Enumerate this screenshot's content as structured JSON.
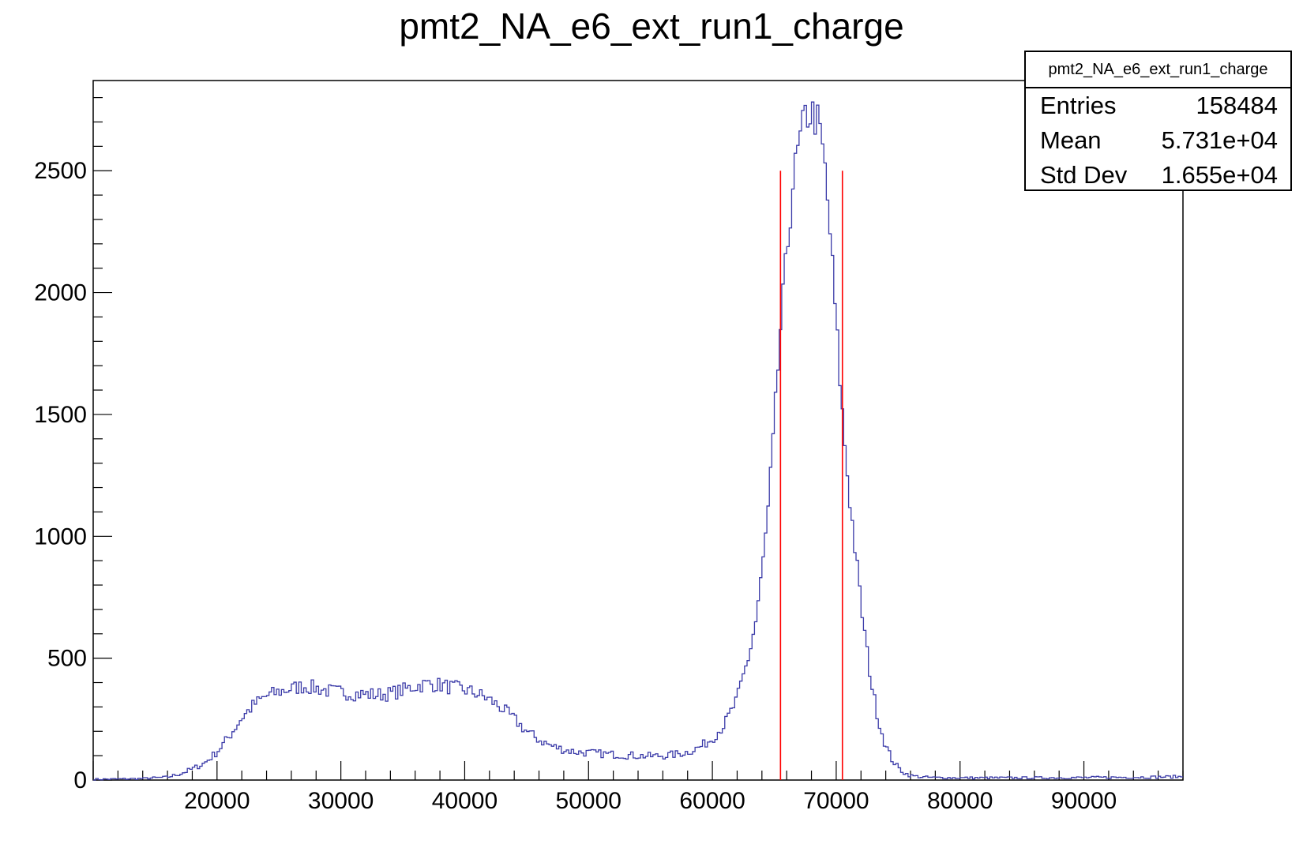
{
  "chart_data": {
    "type": "histogram",
    "title": "pmt2_NA_e6_ext_run1_charge",
    "xlabel": "",
    "ylabel": "",
    "xlim": [
      10000,
      98000
    ],
    "ylim": [
      0,
      2870
    ],
    "x_ticks": [
      20000,
      30000,
      40000,
      50000,
      60000,
      70000,
      80000,
      90000
    ],
    "x_tick_labels": [
      "20000",
      "30000",
      "40000",
      "50000",
      "60000",
      "70000",
      "80000",
      "90000"
    ],
    "y_ticks": [
      0,
      500,
      1000,
      1500,
      2000,
      2500
    ],
    "y_tick_labels": [
      "0",
      "500",
      "1000",
      "1500",
      "2000",
      "2500"
    ],
    "grid": false,
    "line_color": "#3a3aa8",
    "marker_color": "#ff0000",
    "markers": [
      {
        "x": 65500,
        "y_top": 2500
      },
      {
        "x": 70500,
        "y_top": 2500
      }
    ],
    "series": [
      {
        "x": [
          10000,
          12000,
          14000,
          16000,
          17000,
          18000,
          19000,
          20000,
          21000,
          22000,
          23000,
          24000,
          25000,
          26000,
          27000,
          28000,
          29000,
          30000,
          31000,
          32000,
          33000,
          34000,
          35000,
          36000,
          37000,
          38000,
          39000,
          40000,
          41000,
          42000,
          43000,
          44000,
          45000,
          46000,
          47000,
          48000,
          49000,
          50000,
          51000,
          52000,
          53000,
          54000,
          55000,
          56000,
          57000,
          58000,
          59000,
          60000,
          61000,
          62000,
          63000,
          63500,
          64000,
          64500,
          65000,
          65500,
          66000,
          66500,
          67000,
          67500,
          68000,
          68500,
          69000,
          69500,
          70000,
          70500,
          71000,
          71500,
          72000,
          72500,
          73000,
          73500,
          74000,
          74500,
          75000,
          75500,
          76000,
          77000,
          78000,
          80000,
          85000,
          90000,
          95000,
          98000
        ],
        "values": [
          3,
          4,
          6,
          12,
          25,
          45,
          70,
          115,
          180,
          255,
          310,
          345,
          362,
          375,
          385,
          378,
          365,
          360,
          355,
          352,
          350,
          355,
          368,
          385,
          395,
          390,
          380,
          370,
          355,
          330,
          295,
          250,
          200,
          165,
          140,
          125,
          115,
          112,
          108,
          105,
          102,
          100,
          98,
          100,
          105,
          115,
          135,
          170,
          230,
          330,
          520,
          650,
          850,
          1100,
          1450,
          1850,
          2150,
          2450,
          2600,
          2720,
          2740,
          2700,
          2560,
          2250,
          1870,
          1500,
          1200,
          960,
          720,
          520,
          350,
          230,
          140,
          85,
          50,
          30,
          18,
          12,
          10,
          9,
          9,
          10,
          12,
          14
        ]
      }
    ]
  },
  "stats": {
    "title": "pmt2_NA_e6_ext_run1_charge",
    "rows": [
      {
        "label": "Entries",
        "value": "158484"
      },
      {
        "label": "Mean",
        "value": "5.731e+04"
      },
      {
        "label": "Std Dev",
        "value": "1.655e+04"
      }
    ]
  }
}
